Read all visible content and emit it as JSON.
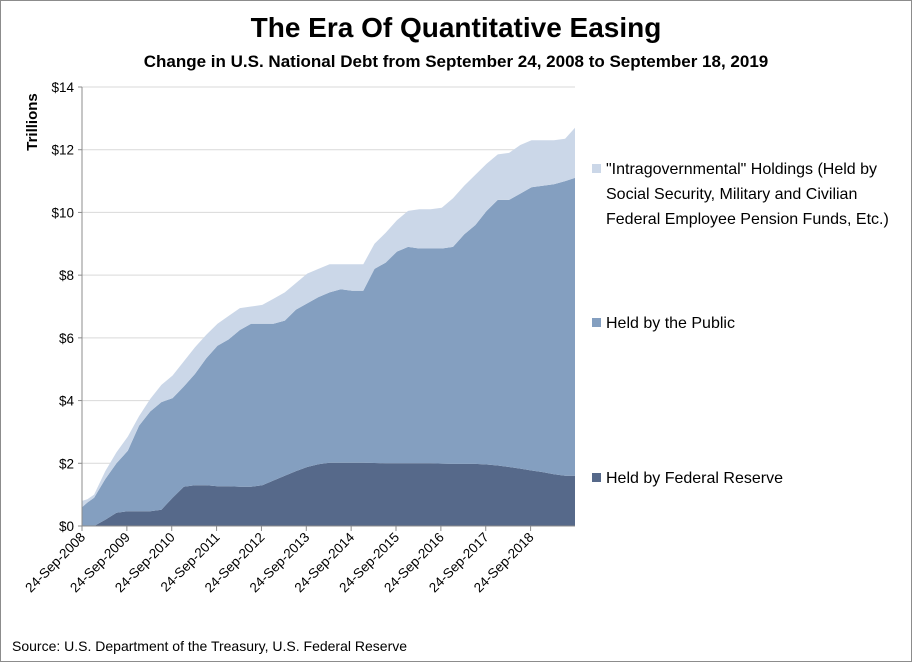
{
  "chart_data": {
    "type": "area",
    "stacked": true,
    "title": "The Era Of Quantitative Easing",
    "subtitle": "Change in U.S. National Debt from September 24, 2008 to September 18, 2019",
    "ylabel": "Trillions",
    "ylim": [
      0,
      14
    ],
    "y_ticks": [
      "$0",
      "$2",
      "$4",
      "$6",
      "$8",
      "$10",
      "$12",
      "$14"
    ],
    "x_ticks": [
      "24-Sep-2008",
      "24-Sep-2009",
      "24-Sep-2010",
      "24-Sep-2011",
      "24-Sep-2012",
      "24-Sep-2013",
      "24-Sep-2014",
      "24-Sep-2015",
      "24-Sep-2016",
      "24-Sep-2017",
      "24-Sep-2018"
    ],
    "x": [
      2008.73,
      2008.85,
      2009.0,
      2009.25,
      2009.5,
      2009.75,
      2010.0,
      2010.25,
      2010.5,
      2010.75,
      2011.0,
      2011.25,
      2011.5,
      2011.75,
      2012.0,
      2012.25,
      2012.5,
      2012.75,
      2013.0,
      2013.25,
      2013.5,
      2013.75,
      2014.0,
      2014.25,
      2014.5,
      2014.75,
      2015.0,
      2015.25,
      2015.5,
      2015.75,
      2016.0,
      2016.25,
      2016.5,
      2016.75,
      2017.0,
      2017.25,
      2017.5,
      2017.75,
      2018.0,
      2018.25,
      2018.5,
      2018.75,
      2019.0,
      2019.25,
      2019.5,
      2019.72
    ],
    "legend_position": "right",
    "grid": true,
    "series": [
      {
        "name": "Held by Federal Reserve",
        "color": "#56698a",
        "values": [
          0.0,
          0.0,
          0.0,
          0.2,
          0.42,
          0.47,
          0.47,
          0.47,
          0.52,
          0.9,
          1.25,
          1.3,
          1.3,
          1.27,
          1.27,
          1.25,
          1.25,
          1.3,
          1.45,
          1.6,
          1.75,
          1.88,
          1.97,
          2.02,
          2.02,
          2.02,
          2.02,
          2.01,
          2.0,
          2.0,
          2.0,
          2.0,
          2.0,
          1.99,
          1.98,
          1.98,
          1.98,
          1.96,
          1.93,
          1.88,
          1.83,
          1.77,
          1.72,
          1.65,
          1.6,
          1.6
        ]
      },
      {
        "name": "Held by the Public",
        "color": "#849fc0",
        "values": [
          0.6,
          0.75,
          0.9,
          1.5,
          2.0,
          2.4,
          3.2,
          3.65,
          3.95,
          4.08,
          4.45,
          4.85,
          5.35,
          5.75,
          5.95,
          6.25,
          6.45,
          6.45,
          6.45,
          6.55,
          6.9,
          7.1,
          7.3,
          7.45,
          7.55,
          7.5,
          7.5,
          8.2,
          8.4,
          8.75,
          8.9,
          8.85,
          8.85,
          8.85,
          8.9,
          9.3,
          9.6,
          10.05,
          10.4,
          10.4,
          10.6,
          10.8,
          10.85,
          10.9,
          11.0,
          11.1
        ]
      },
      {
        "name": "\"Intragovernmental\" Holdings (Held by Social Security, Military and Civilian Federal Employee Pension Funds, Etc.)",
        "color": "#cbd7e8",
        "values": [
          0.8,
          0.85,
          1.0,
          1.75,
          2.35,
          2.85,
          3.5,
          4.05,
          4.5,
          4.8,
          5.25,
          5.7,
          6.1,
          6.45,
          6.7,
          6.95,
          7.0,
          7.05,
          7.25,
          7.45,
          7.75,
          8.05,
          8.2,
          8.35,
          8.35,
          8.35,
          8.35,
          9.0,
          9.35,
          9.75,
          10.05,
          10.1,
          10.1,
          10.15,
          10.45,
          10.85,
          11.2,
          11.55,
          11.85,
          11.9,
          12.15,
          12.3,
          12.3,
          12.3,
          12.35,
          12.7
        ]
      }
    ],
    "source": "Source: U.S. Department of the Treasury, U.S. Federal Reserve"
  }
}
